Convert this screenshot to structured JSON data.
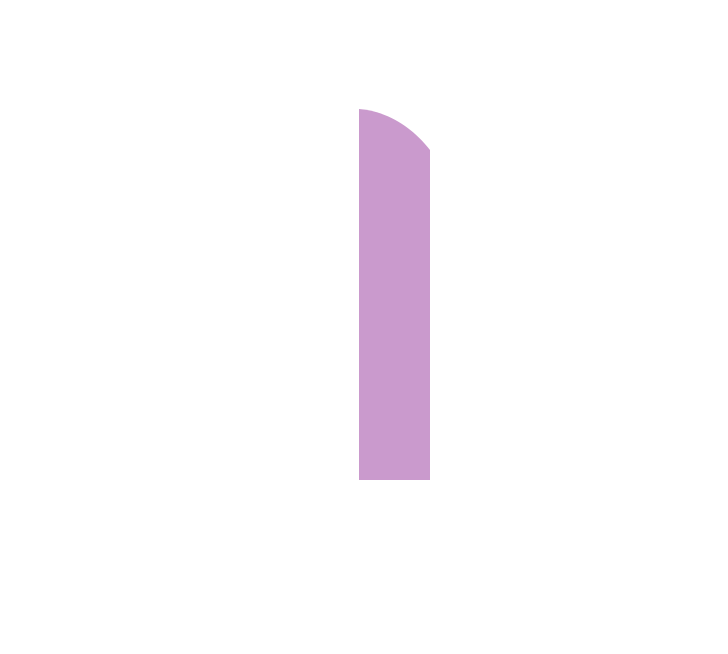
{
  "background_color": "#ffffff",
  "shape": {
    "kind": "bar-with-rounded-top-corner",
    "fill_color": "#ca9acd"
  }
}
